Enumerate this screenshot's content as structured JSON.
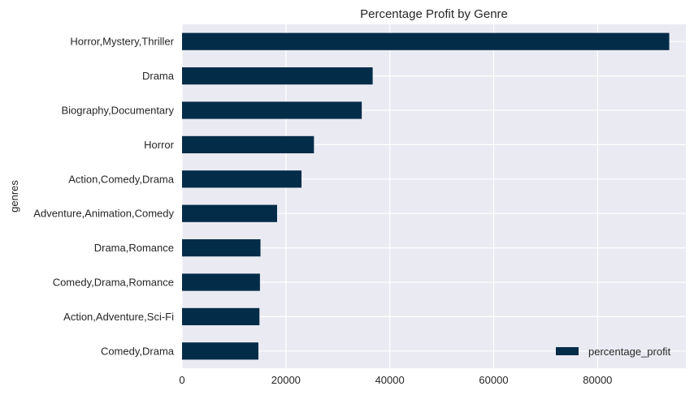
{
  "chart_data": {
    "type": "bar",
    "orientation": "horizontal",
    "title": "Percentage Profit by Genre",
    "xlabel": "",
    "ylabel": "genres",
    "xlim": [
      0,
      97000
    ],
    "xticks": [
      0,
      20000,
      40000,
      60000,
      80000
    ],
    "grid": true,
    "legend_position": "bottom-right",
    "colors": {
      "bar": "#022c48",
      "plot_background": "#eaeaf2",
      "grid": "#ffffff"
    },
    "categories": [
      "Horror,Mystery,Thriller",
      "Drama",
      "Biography,Documentary",
      "Horror",
      "Action,Comedy,Drama",
      "Adventure,Animation,Comedy",
      "Drama,Romance",
      "Comedy,Drama,Romance",
      "Action,Adventure,Sci-Fi",
      "Comedy,Drama"
    ],
    "series": [
      {
        "name": "percentage_profit",
        "values": [
          93800,
          36700,
          34600,
          25400,
          23000,
          18300,
          15100,
          15000,
          14900,
          14700
        ]
      }
    ]
  }
}
